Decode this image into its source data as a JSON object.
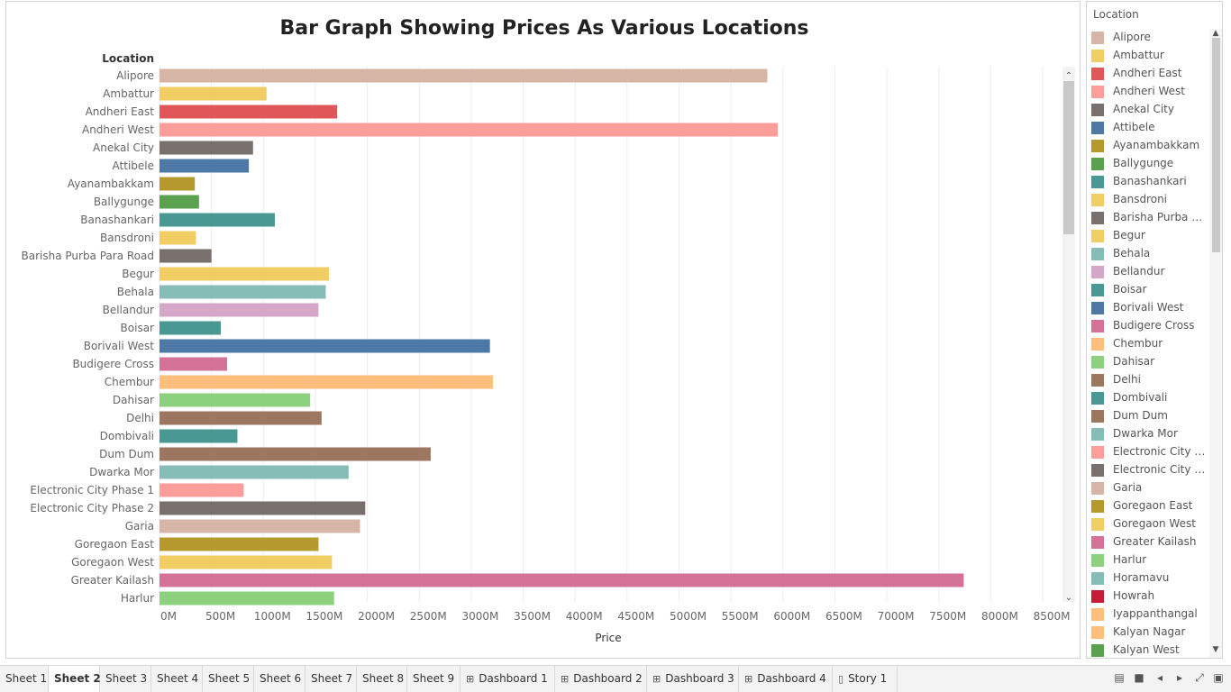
{
  "chart_data": {
    "type": "bar",
    "orientation": "horizontal",
    "title": "Bar Graph Showing Prices As Various Locations",
    "category_header": "Location",
    "xlabel": "Price",
    "xlim": [
      0,
      8500
    ],
    "x_ticks": [
      "0M",
      "500M",
      "1000M",
      "1500M",
      "2000M",
      "2500M",
      "3000M",
      "3500M",
      "4000M",
      "4500M",
      "5000M",
      "5500M",
      "6000M",
      "6500M",
      "7000M",
      "7500M",
      "8000M",
      "8500M"
    ],
    "grid": "vertical",
    "value_unit": "M",
    "bars": [
      {
        "category": "Alipore",
        "value": 5850,
        "color": "#d7b5a6"
      },
      {
        "category": "Ambattur",
        "value": 1030,
        "color": "#f1ce63"
      },
      {
        "category": "Andheri East",
        "value": 1710,
        "color": "#e15759"
      },
      {
        "category": "Andheri West",
        "value": 5950,
        "color": "#ff9d9a"
      },
      {
        "category": "Anekal City",
        "value": 900,
        "color": "#79706e"
      },
      {
        "category": "Attibele",
        "value": 860,
        "color": "#4e79a7"
      },
      {
        "category": "Ayanambakkam",
        "value": 340,
        "color": "#b6992d"
      },
      {
        "category": "Ballygunge",
        "value": 380,
        "color": "#59a14f"
      },
      {
        "category": "Banashankari",
        "value": 1110,
        "color": "#499894"
      },
      {
        "category": "Bansdroni",
        "value": 350,
        "color": "#f1ce63"
      },
      {
        "category": "Barisha Purba Para Road",
        "value": 500,
        "color": "#79706e"
      },
      {
        "category": "Begur",
        "value": 1630,
        "color": "#f1ce63"
      },
      {
        "category": "Behala",
        "value": 1600,
        "color": "#86bcb6"
      },
      {
        "category": "Bellandur",
        "value": 1530,
        "color": "#d4a6c8"
      },
      {
        "category": "Boisar",
        "value": 590,
        "color": "#499894"
      },
      {
        "category": "Borivali West",
        "value": 3180,
        "color": "#4e79a7"
      },
      {
        "category": "Budigere Cross",
        "value": 650,
        "color": "#d37295"
      },
      {
        "category": "Chembur",
        "value": 3210,
        "color": "#ffbe7d"
      },
      {
        "category": "Dahisar",
        "value": 1450,
        "color": "#8cd17d"
      },
      {
        "category": "Delhi",
        "value": 1560,
        "color": "#9d7660"
      },
      {
        "category": "Dombivali",
        "value": 750,
        "color": "#499894"
      },
      {
        "category": "Dum Dum",
        "value": 2610,
        "color": "#9d7660"
      },
      {
        "category": "Dwarka Mor",
        "value": 1820,
        "color": "#86bcb6"
      },
      {
        "category": "Electronic City Phase 1",
        "value": 810,
        "color": "#ff9d9a"
      },
      {
        "category": "Electronic City Phase 2",
        "value": 1980,
        "color": "#79706e"
      },
      {
        "category": "Garia",
        "value": 1930,
        "color": "#d7b5a6"
      },
      {
        "category": "Goregaon East",
        "value": 1530,
        "color": "#b6992d"
      },
      {
        "category": "Goregaon West",
        "value": 1660,
        "color": "#f1ce63"
      },
      {
        "category": "Greater Kailash",
        "value": 7740,
        "color": "#d37295"
      },
      {
        "category": "Harlur",
        "value": 1680,
        "color": "#8cd17d"
      }
    ]
  },
  "legend": {
    "title": "Location",
    "items": [
      {
        "label": "Alipore",
        "color": "#d7b5a6"
      },
      {
        "label": "Ambattur",
        "color": "#f1ce63"
      },
      {
        "label": "Andheri East",
        "color": "#e15759"
      },
      {
        "label": "Andheri West",
        "color": "#ff9d9a"
      },
      {
        "label": "Anekal City",
        "color": "#79706e"
      },
      {
        "label": "Attibele",
        "color": "#4e79a7"
      },
      {
        "label": "Ayanambakkam",
        "color": "#b6992d"
      },
      {
        "label": "Ballygunge",
        "color": "#59a14f"
      },
      {
        "label": "Banashankari",
        "color": "#499894"
      },
      {
        "label": "Bansdroni",
        "color": "#f1ce63"
      },
      {
        "label": "Barisha Purba Par..",
        "color": "#79706e"
      },
      {
        "label": "Begur",
        "color": "#f1ce63"
      },
      {
        "label": "Behala",
        "color": "#86bcb6"
      },
      {
        "label": "Bellandur",
        "color": "#d4a6c8"
      },
      {
        "label": "Boisar",
        "color": "#499894"
      },
      {
        "label": "Borivali West",
        "color": "#4e79a7"
      },
      {
        "label": "Budigere Cross",
        "color": "#d37295"
      },
      {
        "label": "Chembur",
        "color": "#ffbe7d"
      },
      {
        "label": "Dahisar",
        "color": "#8cd17d"
      },
      {
        "label": "Delhi",
        "color": "#9d7660"
      },
      {
        "label": "Dombivali",
        "color": "#499894"
      },
      {
        "label": "Dum Dum",
        "color": "#9d7660"
      },
      {
        "label": "Dwarka Mor",
        "color": "#86bcb6"
      },
      {
        "label": "Electronic City Ph..",
        "color": "#ff9d9a"
      },
      {
        "label": "Electronic City Ph..",
        "color": "#79706e"
      },
      {
        "label": "Garia",
        "color": "#d7b5a6"
      },
      {
        "label": "Goregaon East",
        "color": "#b6992d"
      },
      {
        "label": "Goregaon West",
        "color": "#f1ce63"
      },
      {
        "label": "Greater Kailash",
        "color": "#d37295"
      },
      {
        "label": "Harlur",
        "color": "#8cd17d"
      },
      {
        "label": "Horamavu",
        "color": "#86bcb6"
      },
      {
        "label": "Howrah",
        "color": "#c71a36"
      },
      {
        "label": "Iyappanthangal",
        "color": "#ffbe7d"
      },
      {
        "label": "Kalyan Nagar",
        "color": "#ffbe7d"
      },
      {
        "label": "Kalyan West",
        "color": "#59a14f"
      }
    ]
  },
  "tabs": [
    {
      "label": "Sheet 1",
      "icon": "",
      "active": false
    },
    {
      "label": "Sheet 2",
      "icon": "",
      "active": true
    },
    {
      "label": "Sheet 3",
      "icon": "",
      "active": false
    },
    {
      "label": "Sheet 4",
      "icon": "",
      "active": false
    },
    {
      "label": "Sheet 5",
      "icon": "",
      "active": false
    },
    {
      "label": "Sheet 6",
      "icon": "",
      "active": false
    },
    {
      "label": "Sheet 7",
      "icon": "",
      "active": false
    },
    {
      "label": "Sheet 8",
      "icon": "",
      "active": false
    },
    {
      "label": "Sheet 9",
      "icon": "",
      "active": false
    },
    {
      "label": "Dashboard 1",
      "icon": "dashboard-icon",
      "active": false
    },
    {
      "label": "Dashboard 2",
      "icon": "dashboard-icon",
      "active": false
    },
    {
      "label": "Dashboard 3",
      "icon": "dashboard-icon",
      "active": false
    },
    {
      "label": "Dashboard 4",
      "icon": "dashboard-icon",
      "active": false
    },
    {
      "label": "Story 1",
      "icon": "story-icon",
      "active": false
    }
  ],
  "nav_controls": [
    "filmstrip-view-icon",
    "tab-view-icon",
    "previous-sheet-icon",
    "next-sheet-icon",
    "fit-screen-icon",
    "presentation-icon"
  ]
}
